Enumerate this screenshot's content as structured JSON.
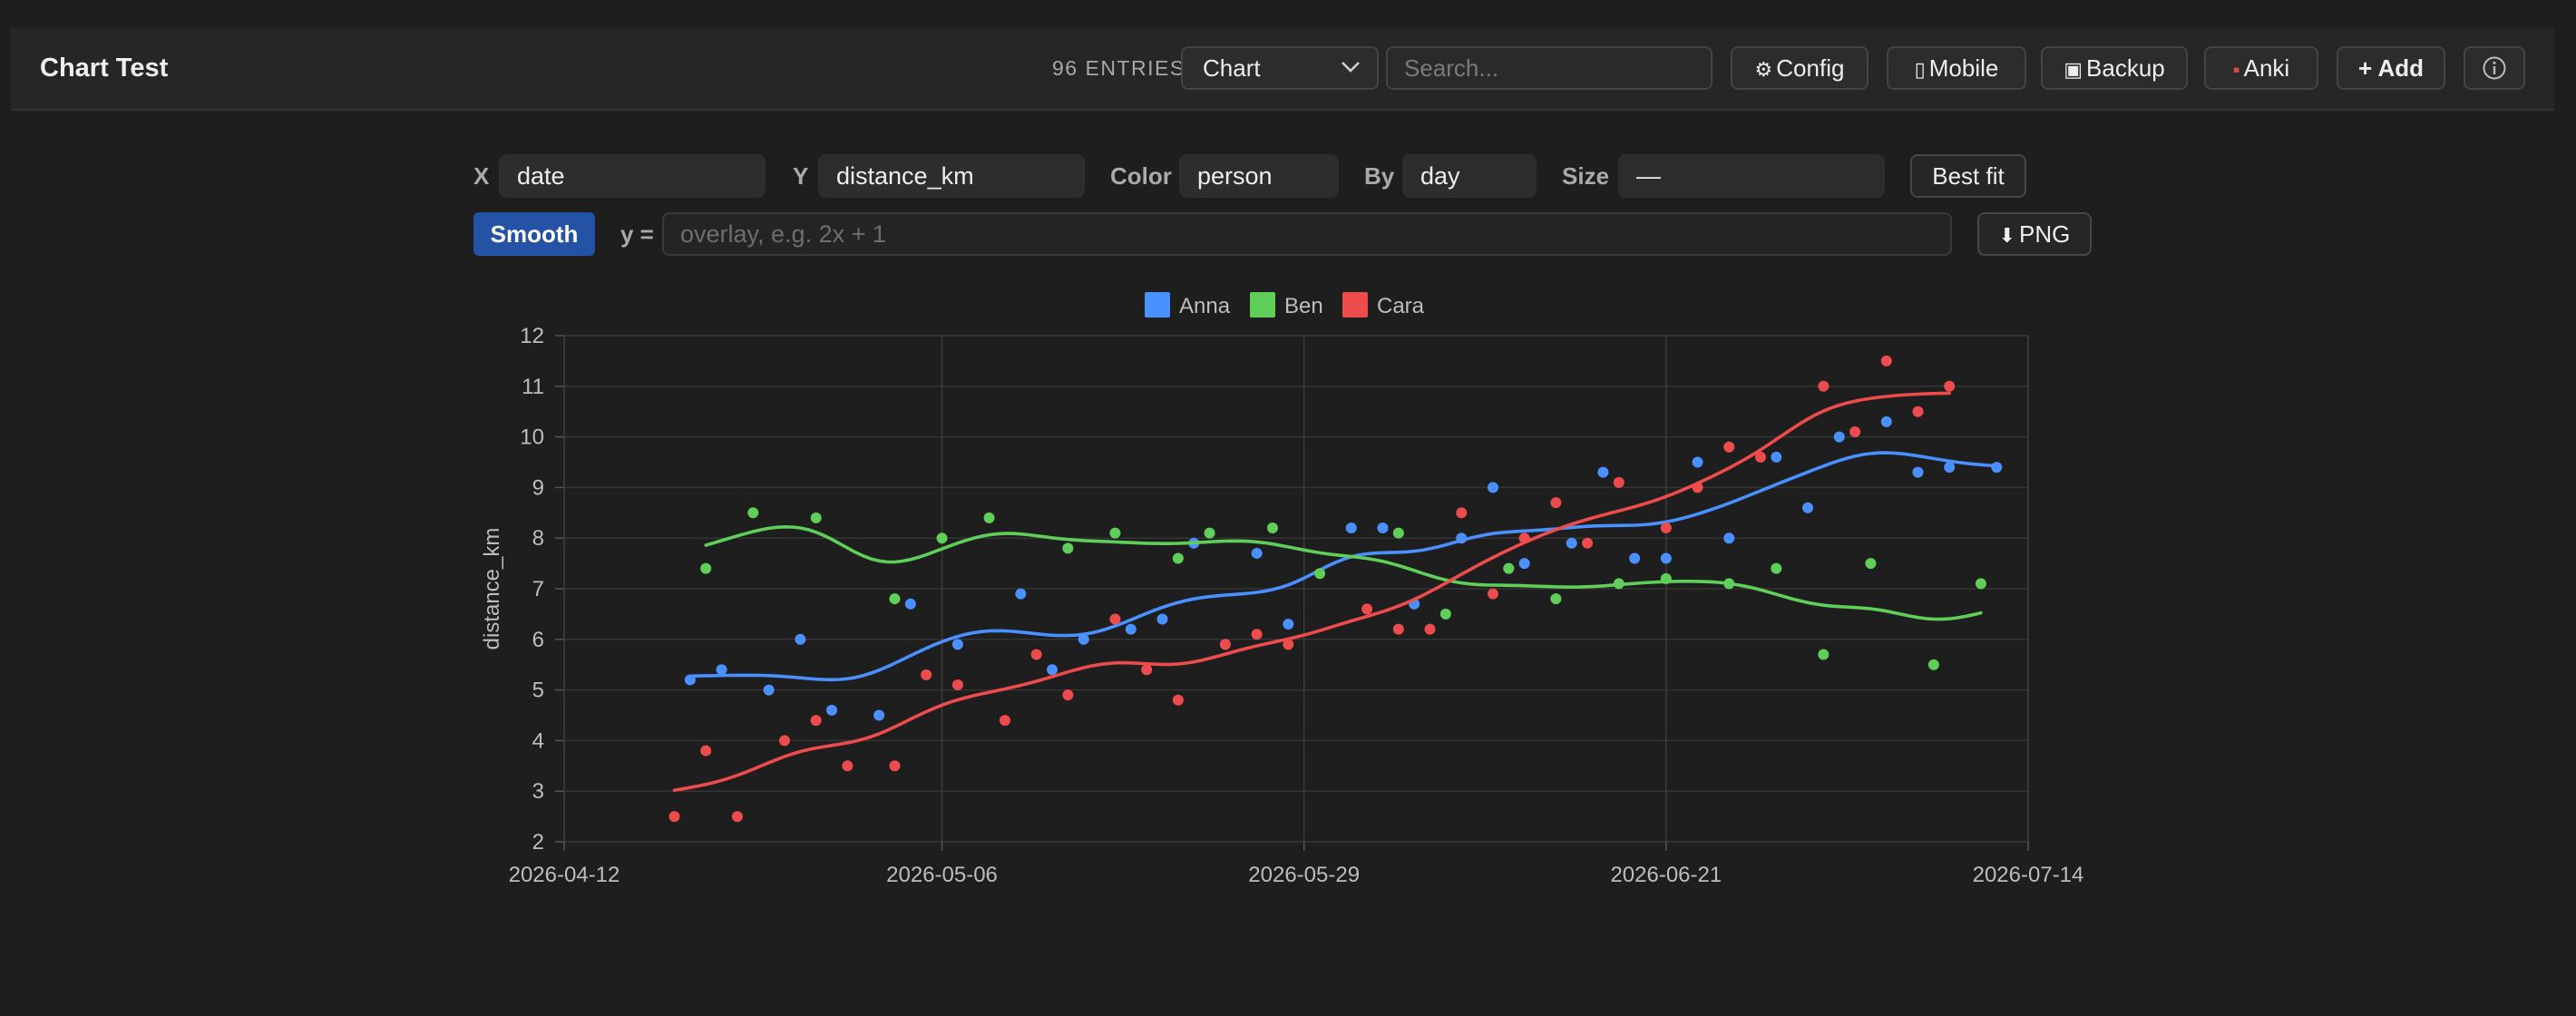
{
  "header": {
    "title": "Chart Test",
    "entries": "96 ENTRIES",
    "view_select": "Chart",
    "search_placeholder": "Search...",
    "buttons": {
      "config": "Config",
      "mobile": "Mobile",
      "backup": "Backup",
      "anki": "Anki",
      "add": "+ Add"
    }
  },
  "controls": {
    "x_label": "X",
    "x_value": "date",
    "y_label": "Y",
    "y_value": "distance_km",
    "color_label": "Color",
    "color_value": "person",
    "by_label": "By",
    "by_value": "day",
    "size_label": "Size",
    "size_value": "—",
    "best_fit": "Best fit",
    "smooth": "Smooth",
    "formula_label": "y =",
    "formula_placeholder": "overlay, e.g. 2x + 1",
    "png": "PNG"
  },
  "colors": {
    "accent": "#2452a5",
    "Anna": "#4a90ff",
    "Ben": "#5fcf5a",
    "Cara": "#ee4c4c"
  },
  "chart_data": {
    "type": "scatter",
    "smoothing": true,
    "xlabel": "",
    "ylabel": "distance_km",
    "xlim": [
      "2026-04-12",
      "2026-07-14"
    ],
    "ylim": [
      2,
      12
    ],
    "x_ticks": [
      "2026-04-12",
      "2026-05-06",
      "2026-05-29",
      "2026-06-21",
      "2026-07-14"
    ],
    "y_ticks": [
      2,
      3,
      4,
      5,
      6,
      7,
      8,
      9,
      10,
      11,
      12
    ],
    "grid": true,
    "legend": "top-center",
    "series": [
      {
        "name": "Anna",
        "points": [
          [
            "2026-04-20",
            5.2
          ],
          [
            "2026-04-22",
            5.4
          ],
          [
            "2026-04-25",
            5.0
          ],
          [
            "2026-04-27",
            6.0
          ],
          [
            "2026-04-29",
            4.6
          ],
          [
            "2026-05-02",
            4.5
          ],
          [
            "2026-05-04",
            6.7
          ],
          [
            "2026-05-07",
            5.9
          ],
          [
            "2026-05-11",
            6.9
          ],
          [
            "2026-05-13",
            5.4
          ],
          [
            "2026-05-15",
            6.0
          ],
          [
            "2026-05-18",
            6.2
          ],
          [
            "2026-05-20",
            6.4
          ],
          [
            "2026-05-22",
            7.9
          ],
          [
            "2026-05-24",
            5.9
          ],
          [
            "2026-05-26",
            7.7
          ],
          [
            "2026-05-28",
            6.3
          ],
          [
            "2026-06-01",
            8.2
          ],
          [
            "2026-06-03",
            8.2
          ],
          [
            "2026-06-05",
            6.7
          ],
          [
            "2026-06-08",
            8.0
          ],
          [
            "2026-06-10",
            9.0
          ],
          [
            "2026-06-12",
            7.5
          ],
          [
            "2026-06-15",
            7.9
          ],
          [
            "2026-06-17",
            9.3
          ],
          [
            "2026-06-19",
            7.6
          ],
          [
            "2026-06-21",
            7.6
          ],
          [
            "2026-06-23",
            9.5
          ],
          [
            "2026-06-25",
            8.0
          ],
          [
            "2026-06-28",
            9.6
          ],
          [
            "2026-06-30",
            8.6
          ],
          [
            "2026-07-02",
            10.0
          ],
          [
            "2026-07-05",
            10.3
          ],
          [
            "2026-07-07",
            9.3
          ],
          [
            "2026-07-09",
            9.4
          ],
          [
            "2026-07-12",
            9.4
          ]
        ]
      },
      {
        "name": "Ben",
        "points": [
          [
            "2026-04-21",
            7.4
          ],
          [
            "2026-04-24",
            8.5
          ],
          [
            "2026-04-28",
            8.4
          ],
          [
            "2026-05-03",
            6.8
          ],
          [
            "2026-05-06",
            8.0
          ],
          [
            "2026-05-09",
            8.4
          ],
          [
            "2026-05-14",
            7.8
          ],
          [
            "2026-05-17",
            8.1
          ],
          [
            "2026-05-21",
            7.6
          ],
          [
            "2026-05-23",
            8.1
          ],
          [
            "2026-05-27",
            8.2
          ],
          [
            "2026-05-30",
            7.3
          ],
          [
            "2026-06-04",
            8.1
          ],
          [
            "2026-06-07",
            6.5
          ],
          [
            "2026-06-11",
            7.4
          ],
          [
            "2026-06-14",
            6.8
          ],
          [
            "2026-06-18",
            7.1
          ],
          [
            "2026-06-21",
            7.2
          ],
          [
            "2026-06-25",
            7.1
          ],
          [
            "2026-06-28",
            7.4
          ],
          [
            "2026-07-01",
            5.7
          ],
          [
            "2026-07-04",
            7.5
          ],
          [
            "2026-07-08",
            5.5
          ],
          [
            "2026-07-11",
            7.1
          ]
        ]
      },
      {
        "name": "Cara",
        "points": [
          [
            "2026-04-19",
            2.5
          ],
          [
            "2026-04-21",
            3.8
          ],
          [
            "2026-04-23",
            2.5
          ],
          [
            "2026-04-26",
            4.0
          ],
          [
            "2026-04-28",
            4.4
          ],
          [
            "2026-04-30",
            3.5
          ],
          [
            "2026-05-03",
            3.5
          ],
          [
            "2026-05-05",
            5.3
          ],
          [
            "2026-05-07",
            5.1
          ],
          [
            "2026-05-10",
            4.4
          ],
          [
            "2026-05-12",
            5.7
          ],
          [
            "2026-05-14",
            4.9
          ],
          [
            "2026-05-17",
            6.4
          ],
          [
            "2026-05-19",
            5.4
          ],
          [
            "2026-05-21",
            4.8
          ],
          [
            "2026-05-24",
            5.9
          ],
          [
            "2026-05-26",
            6.1
          ],
          [
            "2026-05-28",
            5.9
          ],
          [
            "2026-06-02",
            6.6
          ],
          [
            "2026-06-04",
            6.2
          ],
          [
            "2026-06-06",
            6.2
          ],
          [
            "2026-06-08",
            8.5
          ],
          [
            "2026-06-10",
            6.9
          ],
          [
            "2026-06-12",
            8.0
          ],
          [
            "2026-06-14",
            8.7
          ],
          [
            "2026-06-16",
            7.9
          ],
          [
            "2026-06-18",
            9.1
          ],
          [
            "2026-06-21",
            8.2
          ],
          [
            "2026-06-23",
            9.0
          ],
          [
            "2026-06-25",
            9.8
          ],
          [
            "2026-06-27",
            9.6
          ],
          [
            "2026-07-01",
            11.0
          ],
          [
            "2026-07-03",
            10.1
          ],
          [
            "2026-07-05",
            11.5
          ],
          [
            "2026-07-07",
            10.5
          ],
          [
            "2026-07-09",
            11.0
          ]
        ]
      }
    ]
  }
}
